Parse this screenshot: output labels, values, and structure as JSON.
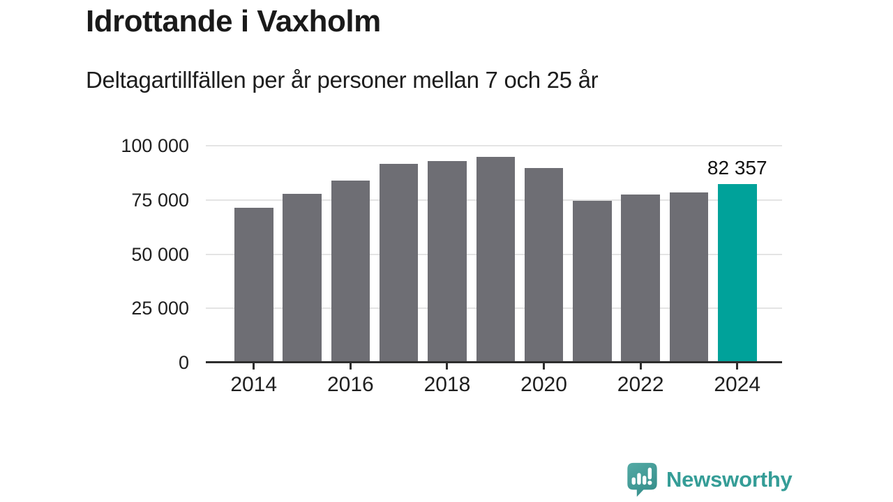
{
  "header": {
    "title": "Idrottande i Vaxholm",
    "subtitle": "Deltagartillfällen per år personer mellan 7 och 25 år"
  },
  "chart_data": {
    "type": "bar",
    "title": "Idrottande i Vaxholm",
    "subtitle": "Deltagartillfällen per år personer mellan 7 och 25 år",
    "categories": [
      2014,
      2015,
      2016,
      2017,
      2018,
      2019,
      2020,
      2021,
      2022,
      2023,
      2024
    ],
    "values": [
      71500,
      77800,
      84000,
      91500,
      92800,
      94800,
      89800,
      74700,
      77600,
      78600,
      82357
    ],
    "highlight_index": 10,
    "annotation": {
      "bar_index": 10,
      "label": "82 357"
    },
    "xlabel": "",
    "ylabel": "",
    "ylim": [
      0,
      100000
    ],
    "y_ticks": [
      0,
      25000,
      50000,
      75000,
      100000
    ],
    "y_tick_labels": [
      "0",
      "25 000",
      "50 000",
      "75 000",
      "100 000"
    ],
    "x_tick_indexes": [
      0,
      2,
      4,
      6,
      8,
      10
    ],
    "x_tick_labels": [
      "2014",
      "2016",
      "2018",
      "2020",
      "2022",
      "2024"
    ],
    "grid": true,
    "legend": false,
    "colors": {
      "bar": "#6e6e74",
      "highlight": "#00a29a",
      "gridline": "#e4e4e4",
      "axis": "#2d2d2d"
    }
  },
  "footer": {
    "brand": "Newsworthy",
    "brand_color": "#359d97",
    "logo_icon": "newsworthy-speech-bubble-bar-chart-icon"
  }
}
